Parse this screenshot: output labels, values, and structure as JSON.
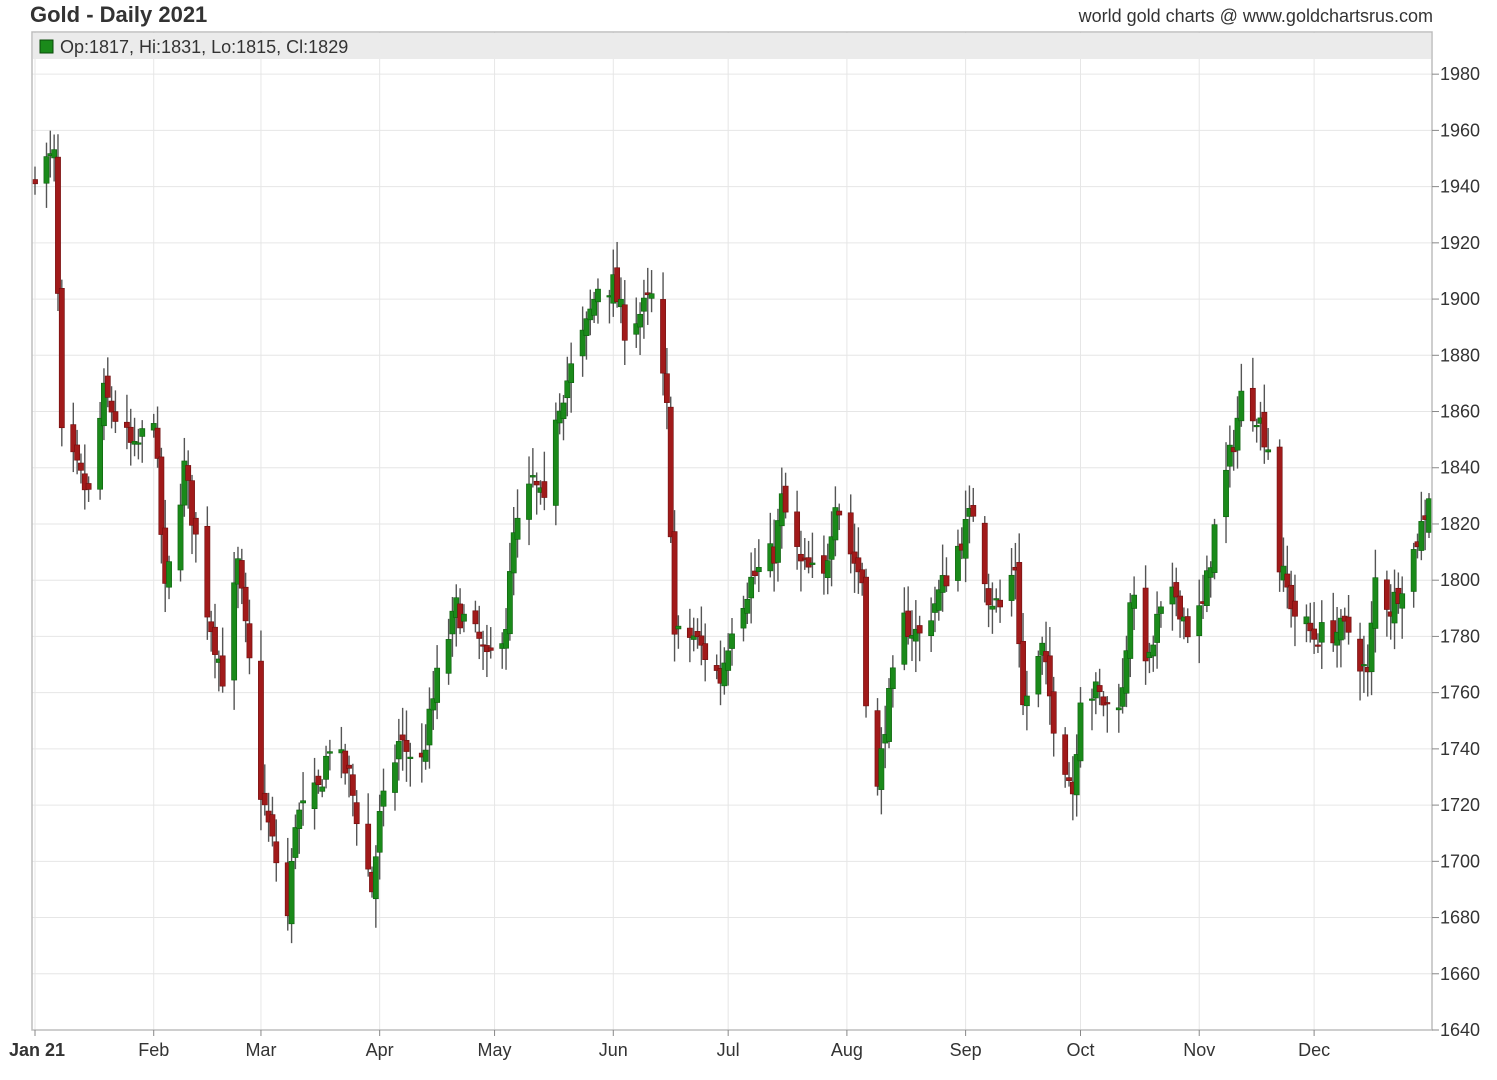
{
  "header": {
    "title": "Gold - Daily 2021",
    "credit": "world gold charts @ www.goldchartsrus.com"
  },
  "chart_data": {
    "type": "candlestick",
    "title": "Gold - Daily 2021",
    "xlabel": "",
    "ylabel": "",
    "ylim": [
      1640,
      1995
    ],
    "y_ticks": [
      1640,
      1660,
      1680,
      1700,
      1720,
      1740,
      1760,
      1780,
      1800,
      1820,
      1840,
      1860,
      1880,
      1900,
      1920,
      1940,
      1960,
      1980
    ],
    "x_ticks": [
      "Jan 21",
      "Feb",
      "Mar",
      "Apr",
      "May",
      "Jun",
      "Jul",
      "Aug",
      "Sep",
      "Oct",
      "Nov",
      "Dec"
    ],
    "grid": true,
    "colors": {
      "up": "#1a8a1a",
      "down": "#a11a1a",
      "wick": "#555555",
      "grid": "#e6e6e6",
      "legend_bar": "#ebebeb"
    },
    "last_bar": {
      "label": "Op:1817, Hi:1831, Lo:1815, Cl:1829",
      "open": 1817,
      "high": 1831,
      "low": 1815,
      "close": 1829
    },
    "close_anchors": [
      [
        "Jan 21",
        1946
      ],
      [
        "Jan 06",
        1950
      ],
      [
        "Jan 08",
        1850
      ],
      [
        "Jan 15",
        1830
      ],
      [
        "Jan 19",
        1866
      ],
      [
        "Jan 27",
        1845
      ],
      [
        "Feb 01",
        1860
      ],
      [
        "Feb 04",
        1795
      ],
      [
        "Feb 09",
        1840
      ],
      [
        "Feb 15",
        1790
      ],
      [
        "Feb 19",
        1766
      ],
      [
        "Feb 23",
        1805
      ],
      [
        "Feb 26",
        1770
      ],
      [
        "Mar 01",
        1725
      ],
      [
        "Mar 05",
        1700
      ],
      [
        "Mar 08",
        1680
      ],
      [
        "Mar 10",
        1715
      ],
      [
        "Mar 16",
        1725
      ],
      [
        "Mar 19",
        1742
      ],
      [
        "Mar 24",
        1730
      ],
      [
        "Mar 30",
        1690
      ],
      [
        "Apr 01",
        1715
      ],
      [
        "Apr 06",
        1742
      ],
      [
        "Apr 12",
        1735
      ],
      [
        "Apr 16",
        1765
      ],
      [
        "Apr 21",
        1790
      ],
      [
        "Apr 27",
        1778
      ],
      [
        "Apr 29",
        1770
      ],
      [
        "May 04",
        1785
      ],
      [
        "May 06",
        1815
      ],
      [
        "May 11",
        1835
      ],
      [
        "May 14",
        1825
      ],
      [
        "May 17",
        1860
      ],
      [
        "May 21",
        1875
      ],
      [
        "May 25",
        1890
      ],
      [
        "May 28",
        1905
      ],
      [
        "Jun 01",
        1905
      ],
      [
        "Jun 04",
        1890
      ],
      [
        "Jun 08",
        1895
      ],
      [
        "Jun 11",
        1900
      ],
      [
        "Jun 15",
        1860
      ],
      [
        "Jun 17",
        1780
      ],
      [
        "Jun 22",
        1780
      ],
      [
        "Jun 29",
        1765
      ],
      [
        "Jul 02",
        1785
      ],
      [
        "Jul 07",
        1800
      ],
      [
        "Jul 13",
        1810
      ],
      [
        "Jul 15",
        1828
      ],
      [
        "Jul 20",
        1805
      ],
      [
        "Jul 26",
        1800
      ],
      [
        "Jul 29",
        1830
      ],
      [
        "Aug 02",
        1810
      ],
      [
        "Aug 05",
        1800
      ],
      [
        "Aug 06",
        1760
      ],
      [
        "Aug 09",
        1725
      ],
      [
        "Aug 11",
        1750
      ],
      [
        "Aug 16",
        1785
      ],
      [
        "Aug 20",
        1780
      ],
      [
        "Aug 25",
        1795
      ],
      [
        "Aug 31",
        1815
      ],
      [
        "Sep 03",
        1825
      ],
      [
        "Sep 07",
        1795
      ],
      [
        "Sep 10",
        1790
      ],
      [
        "Sep 14",
        1805
      ],
      [
        "Sep 16",
        1755
      ],
      [
        "Sep 21",
        1775
      ],
      [
        "Sep 24",
        1750
      ],
      [
        "Sep 29",
        1725
      ],
      [
        "Oct 01",
        1760
      ],
      [
        "Oct 05",
        1760
      ],
      [
        "Oct 08",
        1755
      ],
      [
        "Oct 12",
        1760
      ],
      [
        "Oct 14",
        1795
      ],
      [
        "Oct 19",
        1770
      ],
      [
        "Oct 21",
        1785
      ],
      [
        "Oct 26",
        1795
      ],
      [
        "Oct 29",
        1783
      ],
      [
        "Nov 02",
        1790
      ],
      [
        "Nov 05",
        1818
      ],
      [
        "Nov 10",
        1850
      ],
      [
        "Nov 12",
        1865
      ],
      [
        "Nov 16",
        1860
      ],
      [
        "Nov 19",
        1848
      ],
      [
        "Nov 22",
        1805
      ],
      [
        "Nov 26",
        1788
      ],
      [
        "Dec 01",
        1780
      ],
      [
        "Dec 06",
        1782
      ],
      [
        "Dec 10",
        1782
      ],
      [
        "Dec 15",
        1765
      ],
      [
        "Dec 17",
        1800
      ],
      [
        "Dec 21",
        1790
      ],
      [
        "Dec 27",
        1810
      ],
      [
        "Dec 31",
        1829
      ]
    ]
  }
}
